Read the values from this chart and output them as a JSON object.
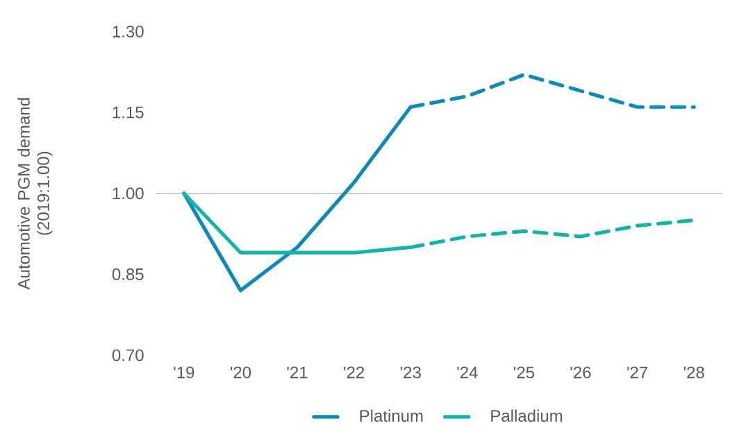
{
  "chart_data": {
    "type": "line",
    "ylabel": "Automotive PGM demand\n(2019:1.00)",
    "categories": [
      "'19",
      "'20",
      "'21",
      "'22",
      "'23",
      "'24",
      "'25",
      "'26",
      "'27",
      "'28"
    ],
    "series": [
      {
        "name": "Platinum",
        "color": "#0f8ab8",
        "line_style": "solid",
        "values": [
          1.0,
          0.82,
          0.9,
          1.02,
          1.16,
          null,
          null,
          null,
          null,
          null
        ]
      },
      {
        "name": "Palladium",
        "color": "#14b3a8",
        "line_style": "solid",
        "values": [
          1.0,
          0.89,
          0.89,
          0.89,
          0.9,
          null,
          null,
          null,
          null,
          null
        ]
      },
      {
        "color": "#0f8ab8",
        "line_style": "dashed",
        "values": [
          null,
          null,
          null,
          null,
          1.16,
          1.18,
          1.22,
          1.19,
          1.16,
          1.16
        ]
      },
      {
        "color": "#14b3a8",
        "line_style": "dashed",
        "values": [
          null,
          null,
          null,
          null,
          0.9,
          0.92,
          0.93,
          0.92,
          0.94,
          0.95
        ]
      }
    ],
    "ylim": [
      0.7,
      1.3
    ],
    "yticks": [
      {
        "value": 0.7,
        "label": "0.70"
      },
      {
        "value": 0.85,
        "label": "0.85"
      },
      {
        "value": 1.0,
        "label": "1.00"
      },
      {
        "value": 1.15,
        "label": "1.15"
      },
      {
        "value": 1.3,
        "label": "1.30"
      }
    ],
    "ref_lines": [
      {
        "axis": "y",
        "value": 1.0,
        "color": "#bfbfbf"
      }
    ],
    "legend": "bottom",
    "marker": "none",
    "grid": false
  }
}
